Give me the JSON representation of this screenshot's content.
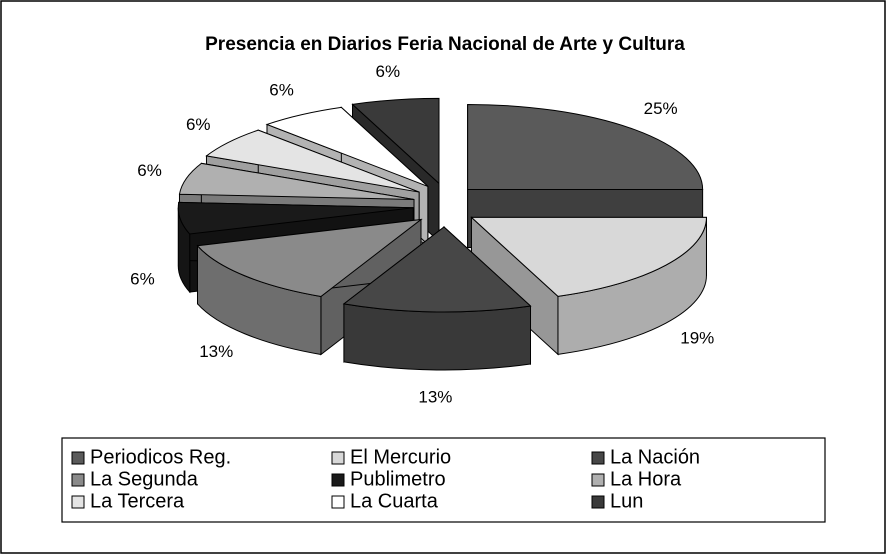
{
  "chart_data": {
    "type": "pie3d",
    "title": "Presencia en Diarios Feria Nacional de Arte y Cultura",
    "categories": [
      "Periodicos Reg.",
      "El Mercurio",
      "La Nación",
      "La Segunda",
      "Publimetro",
      "La Hora",
      "La Tercera",
      "La Cuarta",
      "Lun"
    ],
    "values": [
      25,
      19,
      13,
      13,
      6,
      6,
      6,
      6,
      6
    ],
    "value_labels": [
      "25%",
      "19%",
      "13%",
      "13%",
      "6%",
      "6%",
      "6%",
      "6%",
      "6%"
    ],
    "colors": [
      "#5a5a5a",
      "#d8d8d8",
      "#474747",
      "#8a8a8a",
      "#1a1a1a",
      "#b0b0b0",
      "#e4e4e4",
      "#ffffff",
      "#3a3a3a"
    ],
    "legend": "bottom"
  }
}
